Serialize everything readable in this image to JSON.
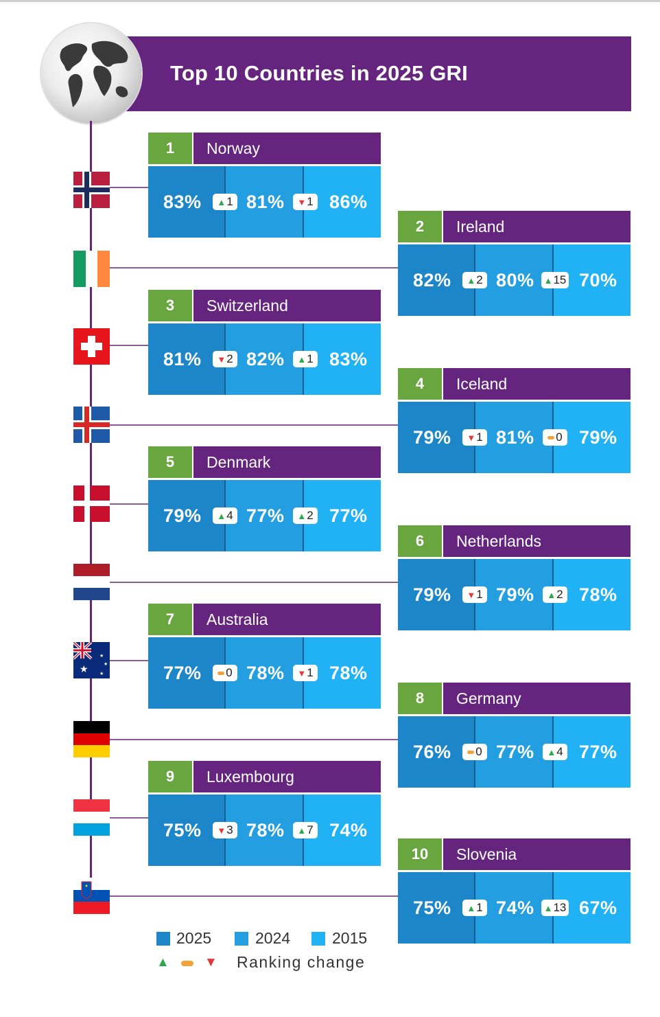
{
  "title": "Top 10 Countries in 2025 GRI",
  "colors": {
    "purple": "#65247e",
    "green": "#6aa640",
    "c2025": "#1c86c8",
    "c2024": "#239ee0",
    "c2015": "#20b2f5",
    "up": "#2aa84a",
    "down": "#e03a3a",
    "same": "#f2a33a"
  },
  "countries": [
    {
      "rank": "1",
      "name": "Norway",
      "flag": "norway-flag",
      "v2025": "83%",
      "ch1_dir": "up",
      "ch1": "1",
      "v2024": "81%",
      "ch2_dir": "down",
      "ch2": "1",
      "v2015": "86%"
    },
    {
      "rank": "2",
      "name": "Ireland",
      "flag": "ireland-flag",
      "v2025": "82%",
      "ch1_dir": "up",
      "ch1": "2",
      "v2024": "80%",
      "ch2_dir": "up",
      "ch2": "15",
      "v2015": "70%"
    },
    {
      "rank": "3",
      "name": "Switzerland",
      "flag": "switzerland-flag",
      "v2025": "81%",
      "ch1_dir": "down",
      "ch1": "2",
      "v2024": "82%",
      "ch2_dir": "up",
      "ch2": "1",
      "v2015": "83%"
    },
    {
      "rank": "4",
      "name": "Iceland",
      "flag": "iceland-flag",
      "v2025": "79%",
      "ch1_dir": "down",
      "ch1": "1",
      "v2024": "81%",
      "ch2_dir": "same",
      "ch2": "0",
      "v2015": "79%"
    },
    {
      "rank": "5",
      "name": "Denmark",
      "flag": "denmark-flag",
      "v2025": "79%",
      "ch1_dir": "up",
      "ch1": "4",
      "v2024": "77%",
      "ch2_dir": "up",
      "ch2": "2",
      "v2015": "77%"
    },
    {
      "rank": "6",
      "name": "Netherlands",
      "flag": "netherlands-flag",
      "v2025": "79%",
      "ch1_dir": "down",
      "ch1": "1",
      "v2024": "79%",
      "ch2_dir": "up",
      "ch2": "2",
      "v2015": "78%"
    },
    {
      "rank": "7",
      "name": "Australia",
      "flag": "australia-flag",
      "v2025": "77%",
      "ch1_dir": "same",
      "ch1": "0",
      "v2024": "78%",
      "ch2_dir": "down",
      "ch2": "1",
      "v2015": "78%"
    },
    {
      "rank": "8",
      "name": "Germany",
      "flag": "germany-flag",
      "v2025": "76%",
      "ch1_dir": "same",
      "ch1": "0",
      "v2024": "77%",
      "ch2_dir": "up",
      "ch2": "4",
      "v2015": "77%"
    },
    {
      "rank": "9",
      "name": "Luxembourg",
      "flag": "luxembourg-flag",
      "v2025": "75%",
      "ch1_dir": "down",
      "ch1": "3",
      "v2024": "78%",
      "ch2_dir": "up",
      "ch2": "7",
      "v2015": "74%"
    },
    {
      "rank": "10",
      "name": "Slovenia",
      "flag": "slovenia-flag",
      "v2025": "75%",
      "ch1_dir": "up",
      "ch1": "1",
      "v2024": "74%",
      "ch2_dir": "up",
      "ch2": "13",
      "v2015": "67%"
    }
  ],
  "legend": {
    "y2025": "2025",
    "y2024": "2024",
    "y2015": "2015",
    "ranking": "Ranking change"
  }
}
